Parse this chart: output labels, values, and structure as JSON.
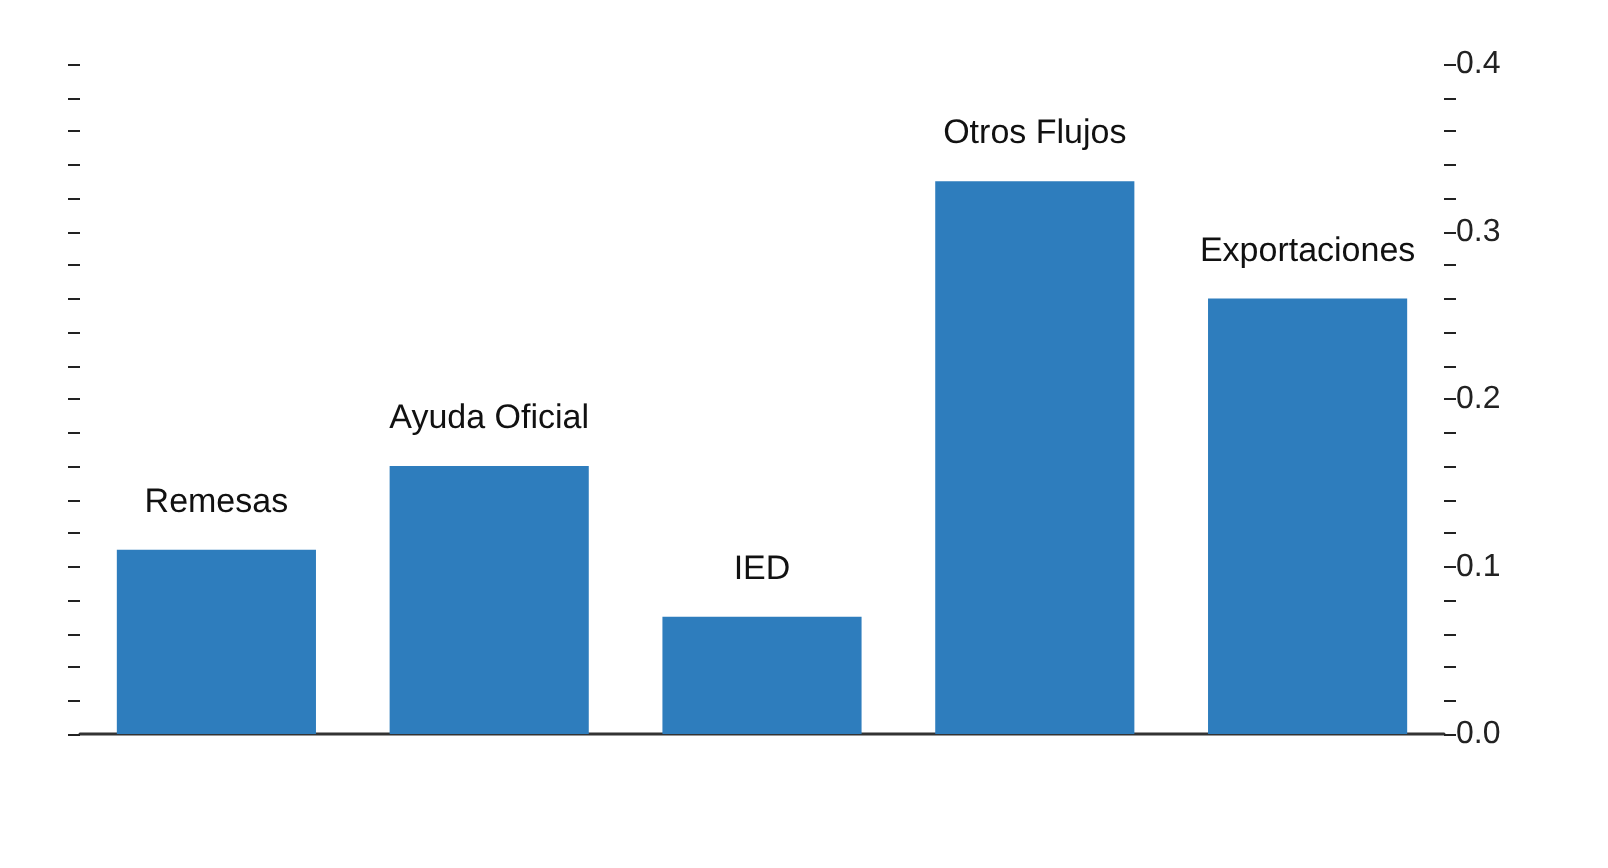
{
  "chart_data": {
    "type": "bar",
    "categories": [
      "Remesas",
      "Ayuda Oficial",
      "IED",
      "Otros Flujos",
      "Exportaciones"
    ],
    "values": [
      0.11,
      0.16,
      0.07,
      0.33,
      0.26
    ],
    "color": "#2e7dbd",
    "ylim": [
      0,
      0.4
    ],
    "yticks": [
      {
        "value": 0,
        "label": "0.0"
      },
      {
        "value": 0.02,
        "label": null
      },
      {
        "value": 0.04,
        "label": null
      },
      {
        "value": 0.06,
        "label": null
      },
      {
        "value": 0.08,
        "label": null
      },
      {
        "value": 0.1,
        "label": "0.1"
      },
      {
        "value": 0.12,
        "label": null
      },
      {
        "value": 0.14,
        "label": null
      },
      {
        "value": 0.16,
        "label": null
      },
      {
        "value": 0.18,
        "label": null
      },
      {
        "value": 0.2,
        "label": "0.2"
      },
      {
        "value": 0.22,
        "label": null
      },
      {
        "value": 0.24,
        "label": null
      },
      {
        "value": 0.26,
        "label": null
      },
      {
        "value": 0.28,
        "label": null
      },
      {
        "value": 0.3,
        "label": "0.3"
      },
      {
        "value": 0.32,
        "label": null
      },
      {
        "value": 0.34,
        "label": null
      },
      {
        "value": 0.36,
        "label": null
      },
      {
        "value": 0.38,
        "label": null
      },
      {
        "value": 0.4,
        "label": "0.4"
      }
    ],
    "grid": false
  }
}
